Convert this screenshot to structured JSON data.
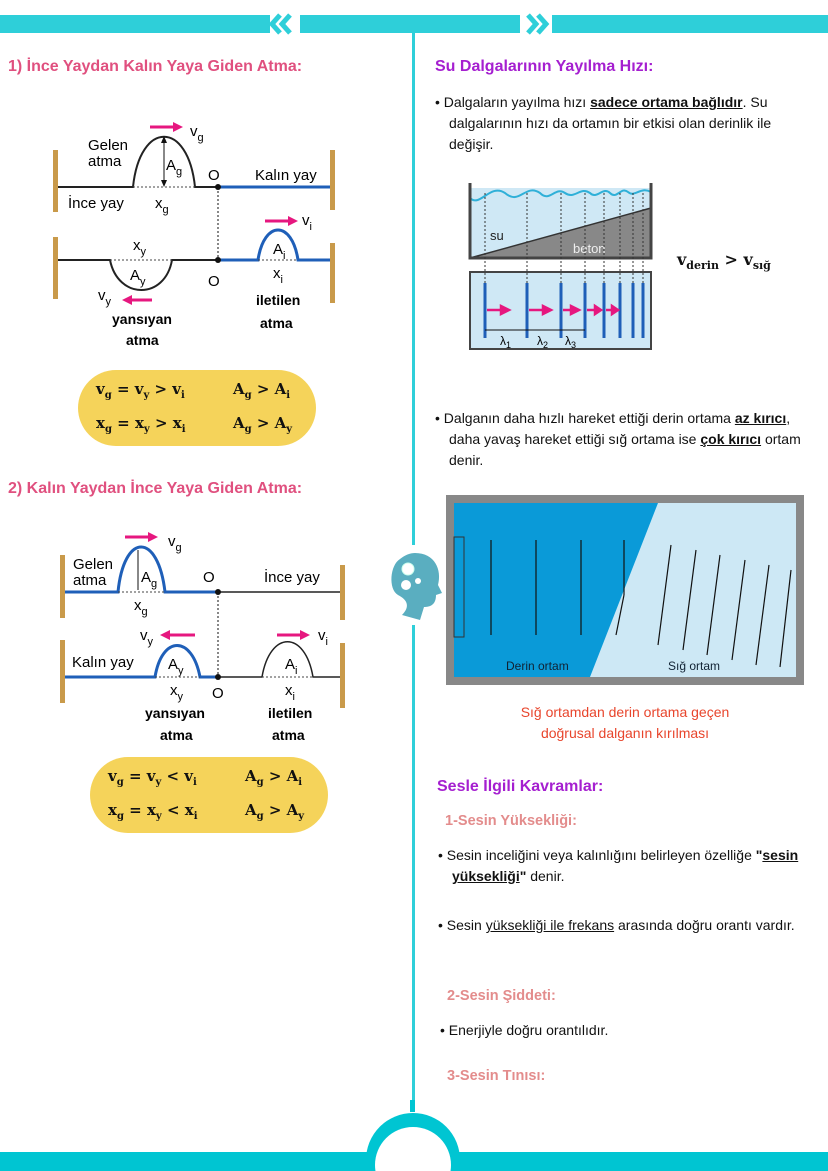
{
  "colors": {
    "accent": "#2ecfd9",
    "heading_pink": "#e0507f",
    "heading_purple": "#a51fd0",
    "subheading": "#e38c8c",
    "formula_bg": "#f5d35a",
    "caption": "#e8452c",
    "spring_thick": "#1f5fb8",
    "wall": "#c99a4a",
    "arrow": "#e6177f",
    "deep": "#0a9ad8",
    "shallow": "#cde8f5"
  },
  "left": {
    "section1": {
      "title": "1) İnce Yaydan Kalın Yaya Giden Atma:",
      "diagram": {
        "gelen": "Gelen",
        "atma": "atma",
        "ince_yay": "İnce yay",
        "kalin_yay": "Kalın yay",
        "O": "O",
        "v": "v",
        "A": "A",
        "x": "x",
        "g": "g",
        "y": "y",
        "i": "i",
        "yansiyan": "yansıyan",
        "iletilen": "iletilen"
      },
      "formula": {
        "r1a": "v",
        "r1a_s": "g",
        "r1b": " = v",
        "r1b_s": "y",
        "r1c": " > v",
        "r1c_s": "i",
        "r1d": "A",
        "r1d_s": "g",
        "r1e": " > A",
        "r1e_s": "i",
        "r2a": "x",
        "r2a_s": "g",
        "r2b": " = x",
        "r2b_s": "y",
        "r2c": " > x",
        "r2c_s": "i",
        "r2d": "A",
        "r2d_s": "g",
        "r2e": " > A",
        "r2e_s": "y"
      }
    },
    "section2": {
      "title": "2) Kalın Yaydan İnce Yaya Giden Atma:",
      "diagram": {
        "gelen": "Gelen",
        "atma": "atma",
        "ince_yay": "İnce yay",
        "kalin_yay": "Kalın yay",
        "O": "O",
        "v": "v",
        "A": "A",
        "x": "x",
        "g": "g",
        "y": "y",
        "i": "i",
        "yansiyan": "yansıyan",
        "iletilen": "iletilen"
      },
      "formula": {
        "r1a": "v",
        "r1a_s": "g",
        "r1b": " = v",
        "r1b_s": "y",
        "r1c": " < v",
        "r1c_s": "i",
        "r1d": "A",
        "r1d_s": "g",
        "r1e": " > A",
        "r1e_s": "i",
        "r2a": "x",
        "r2a_s": "g",
        "r2b": " = x",
        "r2b_s": "y",
        "r2c": " < x",
        "r2c_s": "i",
        "r2d": "A",
        "r2d_s": "g",
        "r2e": " > A",
        "r2e_s": "y"
      }
    }
  },
  "right": {
    "title": "Su Dalgalarının Yayılma Hızı:",
    "bullet1": {
      "pre": "Dalgaların yayılma hızı ",
      "bold": "sadece ortama bağlıdır",
      "post": ". Su dalgalarının hızı da ortamın bir etkisi olan derinlik ile değişir."
    },
    "tank": {
      "su": "su",
      "beton": "beton",
      "lambda": "λ",
      "l1": "1",
      "l2": "2",
      "l3": "3"
    },
    "speed": {
      "v": "v",
      "derin": "derin",
      "gt": " > ",
      "sig": "sığ"
    },
    "bullet2": {
      "pre": "Dalganın daha hızlı hareket ettiği derin ortama ",
      "b1": "az kırıcı",
      "mid": ", daha yavaş hareket ettiği sığ ortama ise ",
      "b2": "çok kırıcı",
      "post": " ortam denir."
    },
    "refraction": {
      "deep": "Derin ortam",
      "shallow": "Sığ ortam"
    },
    "caption": {
      "line1": "Sığ ortamdan derin ortama geçen",
      "line2": "doğrusal dalganın kırılması"
    },
    "sound": {
      "title": "Sesle İlgili Kavramlar:",
      "sub1": "1-Sesin Yüksekliği:",
      "b1": {
        "pre": "Sesin inceliğini veya kalınlığını belirleyen özelliğe ",
        "q1": "\"",
        "bold": "sesin yüksekliği",
        "q2": "\"",
        "post": " denir."
      },
      "b2": {
        "pre": "Sesin ",
        "u": "yüksekliği ile frekans",
        "post": " arasında doğru orantı vardır."
      },
      "sub2": "2-Sesin Şiddeti:",
      "b3": "Enerjiyle doğru orantılıdır.",
      "sub3": "3-Sesin Tınısı:"
    }
  }
}
